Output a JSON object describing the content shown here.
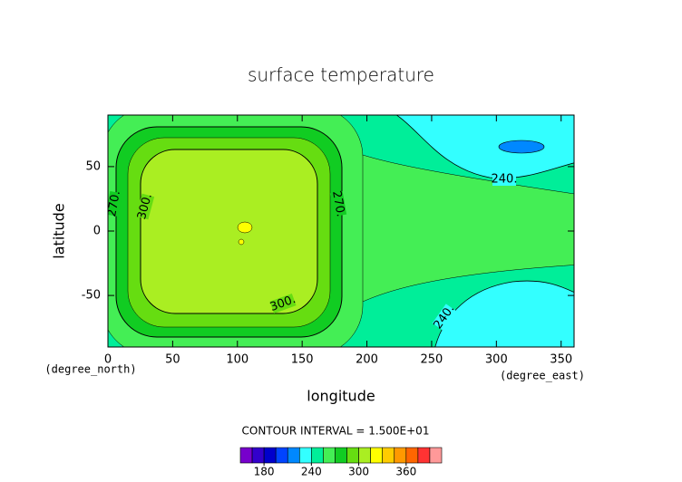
{
  "chart_data": {
    "type": "contour",
    "title": "surface temperature",
    "xlabel": "longitude",
    "ylabel": "latitude",
    "xunits": "(degree_east)",
    "yunits": "(degree_north)",
    "xlim": [
      0,
      360
    ],
    "ylim": [
      -90,
      90
    ],
    "xticks": [
      0,
      50,
      100,
      150,
      200,
      250,
      300,
      350
    ],
    "yticks": [
      -50,
      0,
      50
    ],
    "contour_interval": "CONTOUR INTERVAL = 1.500E+01",
    "contour_labels": [
      "270.",
      "300.",
      "270.",
      "300.",
      "240.",
      "240."
    ],
    "colorbar": {
      "levels": [
        150,
        165,
        180,
        195,
        210,
        225,
        240,
        255,
        270,
        285,
        300,
        315,
        330,
        345,
        360,
        375,
        390,
        405
      ],
      "colors": [
        "#7700cc",
        "#3300cc",
        "#0000cc",
        "#0044ff",
        "#0088ff",
        "#33ffff",
        "#00ee99",
        "#44ee55",
        "#11cc22",
        "#66dd11",
        "#aaee22",
        "#ffff00",
        "#ffcc00",
        "#ff9900",
        "#ff6600",
        "#ff3333",
        "#ff9999"
      ],
      "ticks": [
        180,
        240,
        300,
        360
      ]
    }
  }
}
